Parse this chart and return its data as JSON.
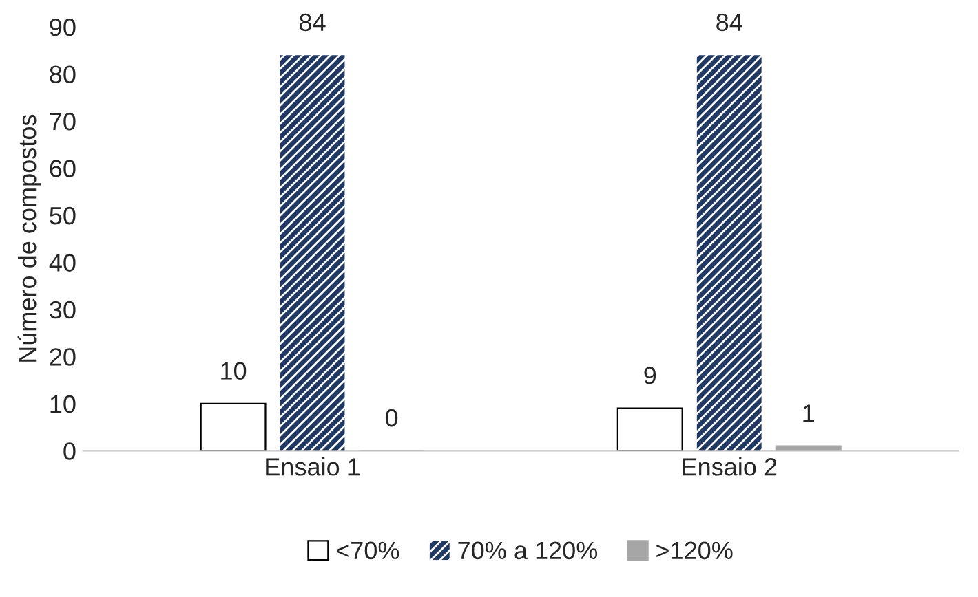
{
  "chart_data": {
    "type": "bar",
    "ylabel": "Número de compostos",
    "categories": [
      "Ensaio 1",
      "Ensaio 2"
    ],
    "series": [
      {
        "name": "<70%",
        "color": "#ffffff",
        "values": [
          10,
          9
        ]
      },
      {
        "name": "70% a 120%",
        "color": "#1f3864",
        "values": [
          84,
          84
        ]
      },
      {
        "name": ">120%",
        "color": "#a6a6a6",
        "values": [
          0,
          1
        ]
      }
    ],
    "ylim": [
      0,
      90
    ],
    "yticks": [
      0,
      10,
      20,
      30,
      40,
      50,
      60,
      70,
      80,
      90
    ],
    "grid": false,
    "legend": "bottom",
    "data_labels": true
  }
}
